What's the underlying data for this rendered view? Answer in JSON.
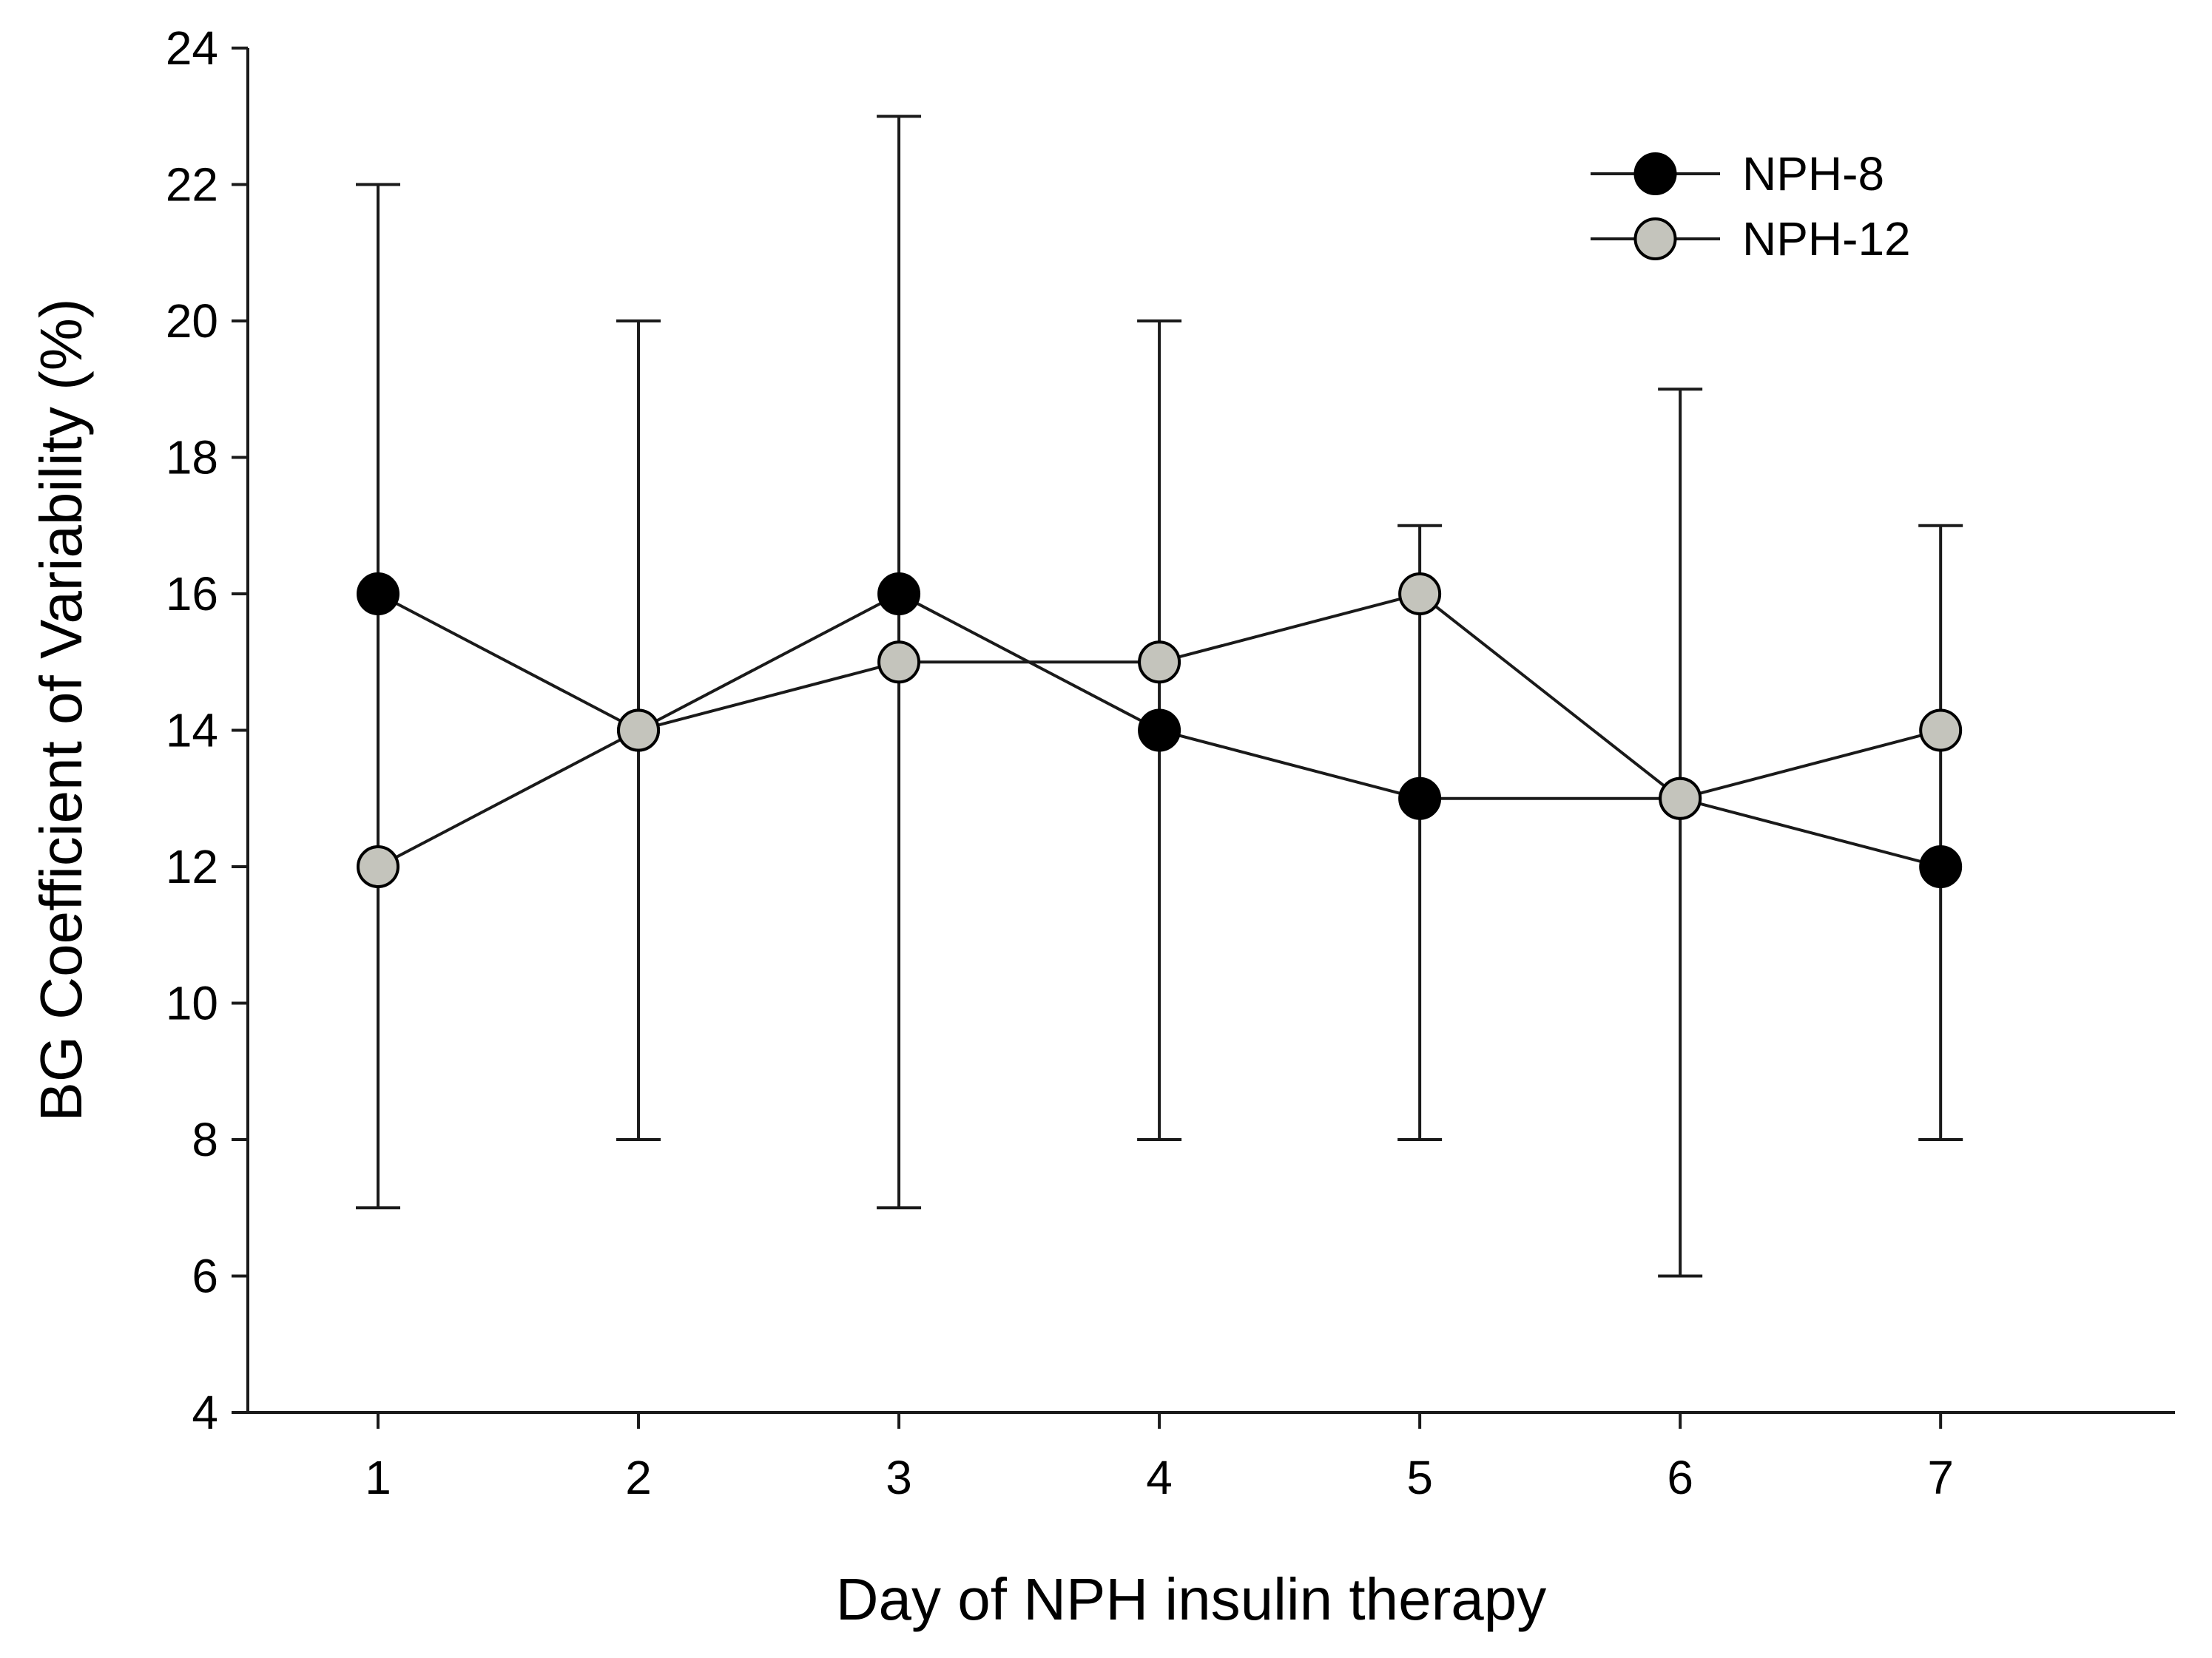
{
  "chart_data": {
    "type": "line",
    "title": "",
    "xlabel": "Day of NPH insulin therapy",
    "ylabel": "BG Coefficient of Variability (%)",
    "x": [
      1,
      2,
      3,
      4,
      5,
      6,
      7
    ],
    "xlim": [
      0.5,
      7.9
    ],
    "ylim": [
      4,
      24
    ],
    "yticks": [
      4,
      6,
      8,
      10,
      12,
      14,
      16,
      18,
      20,
      22,
      24
    ],
    "grid": false,
    "legend_position": "top-right",
    "series": [
      {
        "name": "NPH-8",
        "values": [
          16,
          14,
          16,
          14,
          13,
          13,
          12
        ],
        "marker_fill": "#000000"
      },
      {
        "name": "NPH-12",
        "values": [
          12,
          14,
          15,
          15,
          16,
          13,
          14
        ],
        "marker_fill": "#c4c4bc"
      }
    ],
    "error_bars": [
      {
        "x": 1,
        "low": 7,
        "high": 22
      },
      {
        "x": 2,
        "low": 8,
        "high": 20
      },
      {
        "x": 3,
        "low": 7,
        "high": 23
      },
      {
        "x": 4,
        "low": 8,
        "high": 20
      },
      {
        "x": 5,
        "low": 8,
        "high": 17
      },
      {
        "x": 6,
        "low": 6,
        "high": 19
      },
      {
        "x": 7,
        "low": 8,
        "high": 17
      }
    ]
  }
}
